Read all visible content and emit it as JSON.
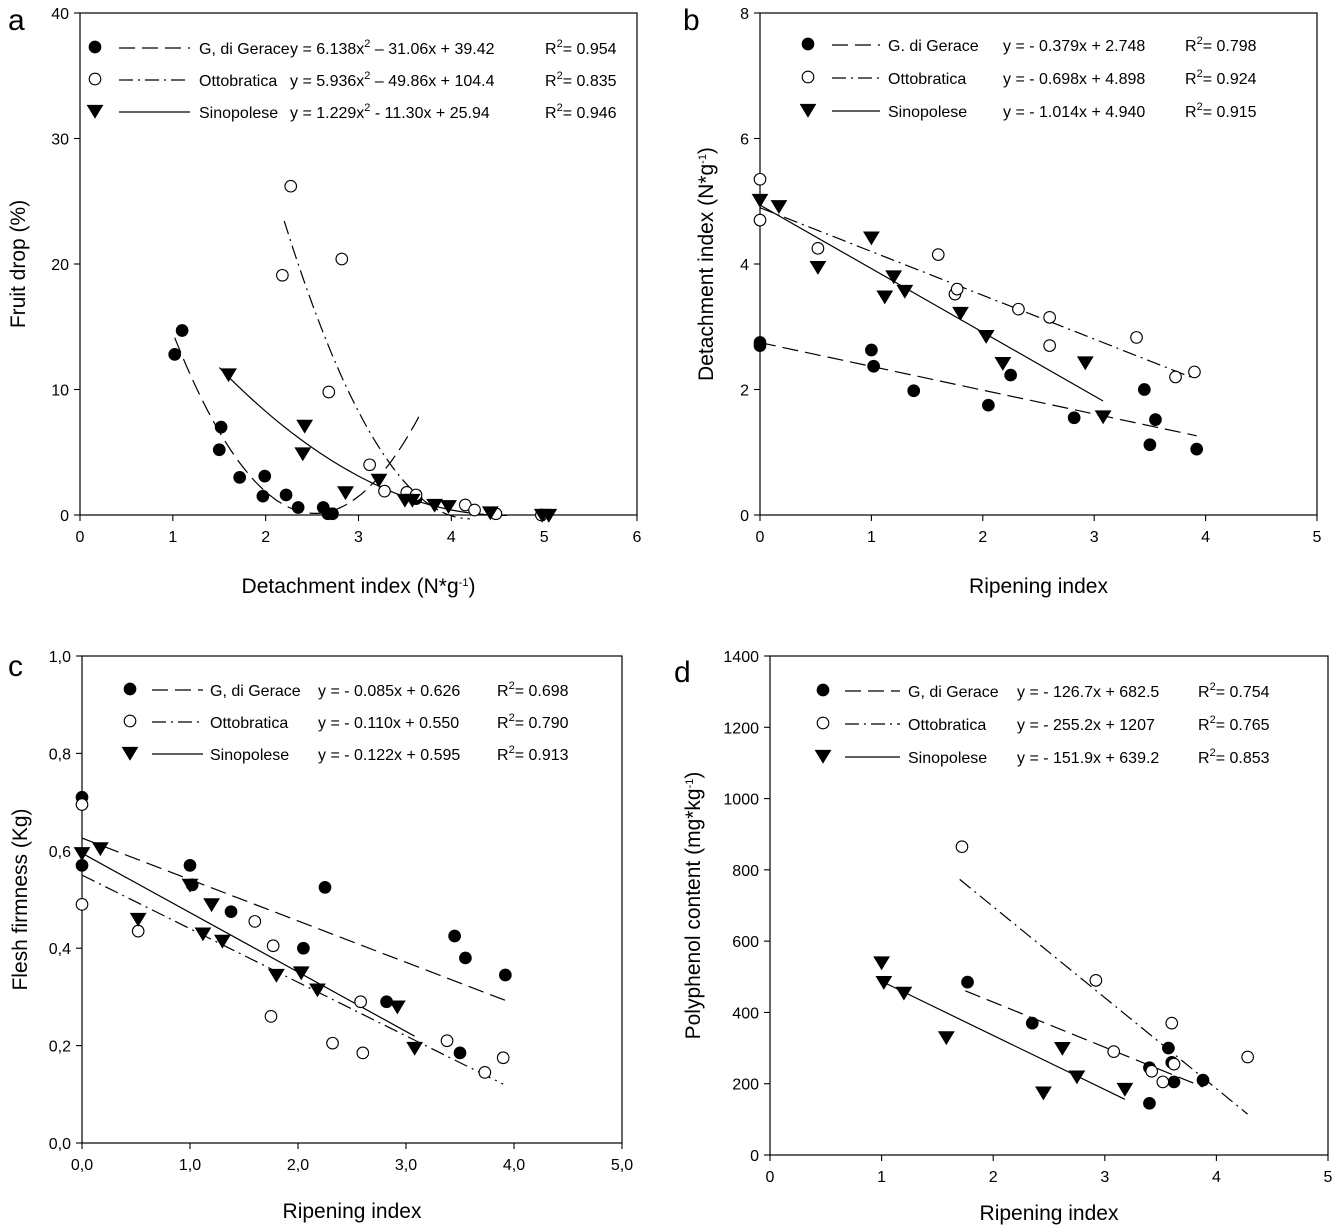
{
  "chart_data": [
    {
      "panel": "a",
      "type": "scatter",
      "xlabel": "Detachment index (N*g",
      "xlabel_sup": "-1",
      "xlabel_end": ")",
      "ylabel": "Fruit drop (%)",
      "xlim": [
        0,
        6
      ],
      "ylim": [
        0,
        40
      ],
      "xticks": [
        0,
        1,
        2,
        3,
        4,
        5,
        6
      ],
      "yticks": [
        0,
        10,
        20,
        30,
        40
      ],
      "decimal_comma": false,
      "grid": false,
      "legend_position": "top",
      "series": [
        {
          "name": "G, di Gerace",
          "marker": "filled-circle",
          "line": "dashed",
          "equation": "y = 6.138x",
          "equation_sup": "2",
          "equation_rest": " – 31.06x + 39.42",
          "r2": "0.954",
          "points": [
            [
              1.02,
              12.8
            ],
            [
              1.1,
              14.7
            ],
            [
              1.52,
              7.0
            ],
            [
              1.5,
              5.2
            ],
            [
              1.72,
              3.0
            ],
            [
              1.97,
              1.5
            ],
            [
              1.99,
              3.1
            ],
            [
              2.22,
              1.6
            ],
            [
              2.35,
              0.6
            ],
            [
              2.62,
              0.6
            ],
            [
              2.67,
              0.1
            ],
            [
              2.72,
              0.1
            ],
            [
              3.62,
              1.3
            ]
          ],
          "fit": {
            "kind": "quadratic",
            "coef": [
              6.138,
              -31.06,
              39.42
            ],
            "x_range": [
              1.02,
              3.65
            ]
          }
        },
        {
          "name": "Ottobratica",
          "marker": "open-circle",
          "line": "dash-dot",
          "equation": "y = 5.936x",
          "equation_sup": "2",
          "equation_rest": " – 49.86x + 104.4",
          "r2": "0.835",
          "points": [
            [
              2.18,
              19.1
            ],
            [
              2.27,
              26.2
            ],
            [
              2.68,
              9.8
            ],
            [
              2.82,
              20.4
            ],
            [
              3.12,
              4.0
            ],
            [
              3.28,
              1.9
            ],
            [
              3.52,
              1.8
            ],
            [
              3.62,
              1.6
            ],
            [
              4.15,
              0.8
            ],
            [
              4.25,
              0.4
            ],
            [
              4.48,
              0.1
            ],
            [
              4.97,
              0.0
            ]
          ],
          "fit": {
            "kind": "quadratic",
            "coef": [
              5.936,
              -49.86,
              104.4
            ],
            "x_range": [
              2.2,
              4.2
            ]
          }
        },
        {
          "name": "Sinopolese",
          "marker": "filled-triangle-down",
          "line": "solid",
          "equation": "y = 1.229x",
          "equation_sup": "2",
          "equation_rest": " - 11.30x + 25.94",
          "r2": "0.946",
          "points": [
            [
              1.6,
              11.2
            ],
            [
              2.42,
              7.1
            ],
            [
              2.4,
              4.9
            ],
            [
              2.86,
              1.8
            ],
            [
              3.22,
              2.8
            ],
            [
              3.5,
              1.2
            ],
            [
              3.58,
              1.2
            ],
            [
              3.82,
              0.8
            ],
            [
              3.97,
              0.7
            ],
            [
              4.42,
              0.2
            ],
            [
              4.98,
              0.0
            ],
            [
              5.05,
              0.0
            ]
          ],
          "fit": {
            "kind": "quadratic",
            "coef": [
              1.229,
              -11.3,
              25.94
            ],
            "x_range": [
              1.5,
              4.6
            ]
          }
        }
      ]
    },
    {
      "panel": "b",
      "type": "scatter",
      "xlabel": "Ripening index",
      "ylabel": "Detachment index (N*g",
      "ylabel_sup": "-1",
      "ylabel_end": ")",
      "xlim": [
        0,
        5
      ],
      "ylim": [
        0,
        8
      ],
      "xticks": [
        0,
        1,
        2,
        3,
        4,
        5
      ],
      "yticks": [
        0,
        2,
        4,
        6,
        8
      ],
      "decimal_comma": false,
      "grid": false,
      "legend_position": "top",
      "series": [
        {
          "name": "G. di Gerace",
          "marker": "filled-circle",
          "line": "dashed",
          "equation": "y = - 0.379x + 2.748",
          "r2": "0.798",
          "points": [
            [
              0.0,
              2.75
            ],
            [
              0.0,
              2.7
            ],
            [
              1.0,
              2.63
            ],
            [
              1.02,
              2.37
            ],
            [
              1.38,
              1.98
            ],
            [
              2.05,
              1.75
            ],
            [
              2.25,
              2.23
            ],
            [
              2.82,
              1.55
            ],
            [
              3.45,
              2.0
            ],
            [
              3.5,
              1.12
            ],
            [
              3.55,
              1.52
            ],
            [
              3.92,
              1.05
            ]
          ],
          "fit": {
            "kind": "linear",
            "coef": [
              -0.379,
              2.748
            ],
            "x_range": [
              0.0,
              3.92
            ]
          }
        },
        {
          "name": "Ottobratica",
          "marker": "open-circle",
          "line": "dash-dot",
          "equation": "y = - 0.698x + 4.898",
          "r2": "0.924",
          "points": [
            [
              0.0,
              5.35
            ],
            [
              0.0,
              4.7
            ],
            [
              0.52,
              4.25
            ],
            [
              1.6,
              4.15
            ],
            [
              1.75,
              3.52
            ],
            [
              1.77,
              3.6
            ],
            [
              2.32,
              3.28
            ],
            [
              2.6,
              3.15
            ],
            [
              2.6,
              2.7
            ],
            [
              3.38,
              2.83
            ],
            [
              3.73,
              2.2
            ],
            [
              3.9,
              2.28
            ]
          ],
          "fit": {
            "kind": "linear",
            "coef": [
              -0.698,
              4.898
            ],
            "x_range": [
              0.0,
              3.9
            ]
          }
        },
        {
          "name": "Sinopolese",
          "marker": "filled-triangle-down",
          "line": "solid",
          "equation": "y = - 1.014x + 4.940",
          "r2": "0.915",
          "points": [
            [
              0.0,
              5.02
            ],
            [
              0.17,
              4.92
            ],
            [
              0.52,
              3.95
            ],
            [
              1.0,
              4.42
            ],
            [
              1.12,
              3.48
            ],
            [
              1.2,
              3.8
            ],
            [
              1.3,
              3.57
            ],
            [
              1.8,
              3.22
            ],
            [
              2.03,
              2.85
            ],
            [
              2.18,
              2.42
            ],
            [
              2.92,
              2.43
            ],
            [
              3.08,
              1.57
            ]
          ],
          "fit": {
            "kind": "linear",
            "coef": [
              -1.014,
              4.94
            ],
            "x_range": [
              0.0,
              3.08
            ]
          }
        }
      ]
    },
    {
      "panel": "c",
      "type": "scatter",
      "xlabel": "Ripening index",
      "ylabel": "Flesh firmness (Kg)",
      "xlim": [
        0,
        5
      ],
      "ylim": [
        0,
        1
      ],
      "xticks": [
        0,
        1,
        2,
        3,
        4,
        5
      ],
      "yticks": [
        0,
        0.2,
        0.4,
        0.6,
        0.8,
        1.0
      ],
      "decimal_comma": true,
      "grid": false,
      "legend_position": "top",
      "series": [
        {
          "name": "G, di Gerace",
          "marker": "filled-circle",
          "line": "dashed",
          "equation": "y = - 0.085x + 0.626",
          "r2": "0.698",
          "points": [
            [
              0.0,
              0.71
            ],
            [
              0.0,
              0.57
            ],
            [
              1.0,
              0.57
            ],
            [
              1.02,
              0.53
            ],
            [
              1.38,
              0.475
            ],
            [
              2.05,
              0.4
            ],
            [
              2.25,
              0.525
            ],
            [
              2.82,
              0.29
            ],
            [
              3.45,
              0.425
            ],
            [
              3.5,
              0.185
            ],
            [
              3.55,
              0.38
            ],
            [
              3.92,
              0.345
            ]
          ],
          "fit": {
            "kind": "linear",
            "coef": [
              -0.085,
              0.626
            ],
            "x_range": [
              0.0,
              3.92
            ]
          }
        },
        {
          "name": "Ottobratica",
          "marker": "open-circle",
          "line": "dash-dot",
          "equation": "y = - 0.110x + 0.550",
          "r2": "0.790",
          "points": [
            [
              0.0,
              0.695
            ],
            [
              0.0,
              0.49
            ],
            [
              0.52,
              0.435
            ],
            [
              1.6,
              0.455
            ],
            [
              1.75,
              0.26
            ],
            [
              1.77,
              0.405
            ],
            [
              2.32,
              0.205
            ],
            [
              2.6,
              0.185
            ],
            [
              2.58,
              0.29
            ],
            [
              3.38,
              0.21
            ],
            [
              3.73,
              0.145
            ],
            [
              3.9,
              0.175
            ]
          ],
          "fit": {
            "kind": "linear",
            "coef": [
              -0.11,
              0.55
            ],
            "x_range": [
              0.0,
              3.9
            ]
          }
        },
        {
          "name": "Sinopolese",
          "marker": "filled-triangle-down",
          "line": "solid",
          "equation": "y = - 0.122x + 0.595",
          "r2": "0.913",
          "points": [
            [
              0.0,
              0.595
            ],
            [
              0.17,
              0.605
            ],
            [
              0.52,
              0.46
            ],
            [
              1.0,
              0.53
            ],
            [
              1.12,
              0.43
            ],
            [
              1.2,
              0.49
            ],
            [
              1.3,
              0.415
            ],
            [
              1.8,
              0.345
            ],
            [
              2.03,
              0.35
            ],
            [
              2.18,
              0.315
            ],
            [
              2.92,
              0.28
            ],
            [
              3.08,
              0.195
            ]
          ],
          "fit": {
            "kind": "linear",
            "coef": [
              -0.122,
              0.595
            ],
            "x_range": [
              0.0,
              3.08
            ]
          }
        }
      ]
    },
    {
      "panel": "d",
      "type": "scatter",
      "xlabel": "Ripening index",
      "ylabel": "Polyphenol content (mg*kg",
      "ylabel_sup": "-1",
      "ylabel_end": ")",
      "xlim": [
        0,
        5
      ],
      "ylim": [
        0,
        1400
      ],
      "xticks": [
        0,
        1,
        2,
        3,
        4,
        5
      ],
      "yticks": [
        0,
        200,
        400,
        600,
        800,
        1000,
        1200,
        1400
      ],
      "decimal_comma": false,
      "grid": false,
      "legend_position": "top",
      "series": [
        {
          "name": "G, di Gerace",
          "marker": "filled-circle",
          "line": "dashed",
          "equation": "y = - 126.7x + 682.5",
          "r2": "0.754",
          "points": [
            [
              1.77,
              485
            ],
            [
              2.35,
              370
            ],
            [
              3.4,
              145
            ],
            [
              3.4,
              245
            ],
            [
              3.57,
              300
            ],
            [
              3.62,
              205
            ],
            [
              3.6,
              260
            ],
            [
              3.88,
              210
            ]
          ],
          "fit": {
            "kind": "linear",
            "coef": [
              -126.7,
              682.5
            ],
            "x_range": [
              1.75,
              3.88
            ]
          }
        },
        {
          "name": "Ottobratica",
          "marker": "open-circle",
          "line": "dash-dot",
          "equation": "y = - 255.2x + 1207",
          "r2": "0.765",
          "points": [
            [
              1.72,
              865
            ],
            [
              2.92,
              490
            ],
            [
              3.08,
              290
            ],
            [
              3.42,
              235
            ],
            [
              3.52,
              205
            ],
            [
              3.6,
              370
            ],
            [
              3.62,
              255
            ],
            [
              4.28,
              275
            ]
          ],
          "fit": {
            "kind": "linear",
            "coef": [
              -255.2,
              1207
            ],
            "x_range": [
              1.7,
              4.28
            ]
          }
        },
        {
          "name": "Sinopolese",
          "marker": "filled-triangle-down",
          "line": "solid",
          "equation": "y = - 151.9x + 639.2",
          "r2": "0.853",
          "points": [
            [
              1.0,
              540
            ],
            [
              1.02,
              485
            ],
            [
              1.2,
              455
            ],
            [
              1.58,
              330
            ],
            [
              2.45,
              175
            ],
            [
              2.62,
              300
            ],
            [
              2.75,
              220
            ],
            [
              3.18,
              185
            ]
          ],
          "fit": {
            "kind": "linear",
            "coef": [
              -151.9,
              639.2
            ],
            "x_range": [
              1.0,
              3.18
            ]
          }
        }
      ]
    }
  ]
}
